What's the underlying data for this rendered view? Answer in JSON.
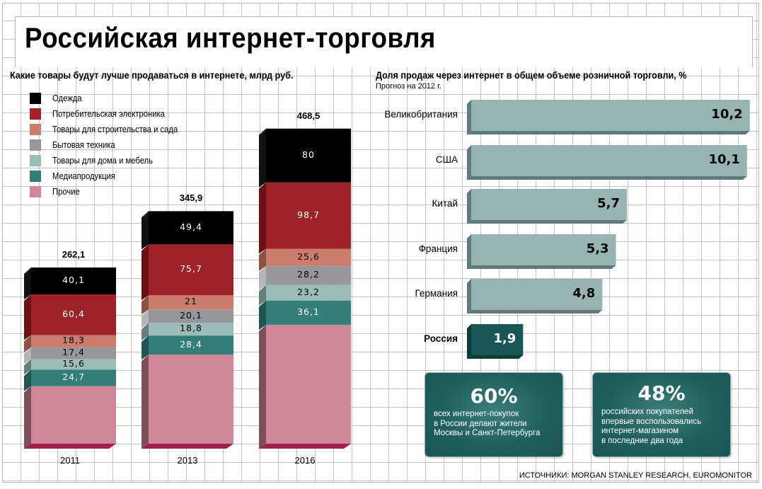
{
  "title": "Российская интернет-торговля",
  "left_subtitle": "Какие товары будут лучше продаваться в интернете, млрд руб.",
  "right_subtitle": "Доля продаж через интернет в общем объеме розничной торговли, %",
  "right_note": "Прогноз на 2012 г.",
  "source": "ИСТОЧНИКИ: MORGAN STANLEY RESEARCH, EUROMONITOR",
  "info_boxes": [
    {
      "big": "60%",
      "lines": [
        "всех интернет-покупок",
        "в России делают жители",
        "Москвы и Санкт-Петербурга"
      ]
    },
    {
      "big": "48%",
      "lines": [
        "российских покупателей",
        "впервые воспользовались",
        "интернет-магазином",
        "в последние два года"
      ]
    }
  ],
  "chart_data": [
    {
      "type": "bar",
      "stacked": true,
      "title": "Какие товары будут лучше продаваться в интернете, млрд руб.",
      "categories": [
        "2011",
        "2013",
        "2016"
      ],
      "totals": [
        "262,1",
        "345,9",
        "468,5"
      ],
      "totals_values": [
        262.1,
        345.9,
        468.5
      ],
      "legend_position": "top-left",
      "series": [
        {
          "name": "Прочие",
          "color": "#d08898",
          "side": "#7e4f5b",
          "values": [
            85.6,
            132.5,
            176.9
          ],
          "labels": [
            "",
            "",
            ""
          ],
          "label_color": "#000000"
        },
        {
          "name": "Медиапродукция",
          "color": "#337e79",
          "side": "#1f5552",
          "values": [
            24.7,
            28.4,
            36.1
          ],
          "labels": [
            "24,7",
            "28,4",
            "36,1"
          ],
          "label_color": "#ffffff"
        },
        {
          "name": "Товары для дома и мебель",
          "color": "#9bbcb8",
          "side": "#647f7c",
          "values": [
            15.6,
            18.8,
            23.2
          ],
          "labels": [
            "15,6",
            "18,8",
            "23,2"
          ],
          "label_color": "#000000"
        },
        {
          "name": "Бытовая техника",
          "color": "#97979b",
          "side": "#b5b5b8",
          "values": [
            17.4,
            20.1,
            28.2
          ],
          "labels": [
            "17,4",
            "20,1",
            "28,2"
          ],
          "label_color": "#000000"
        },
        {
          "name": "Товары для строительства и сада",
          "color": "#cc7c6c",
          "side": "#8a5244",
          "values": [
            18.3,
            21,
            25.6
          ],
          "labels": [
            "18,3",
            "21",
            "25,6"
          ],
          "label_color": "#000000"
        },
        {
          "name": "Потребительская электроника",
          "color": "#9f2228",
          "side": "#6a1116",
          "values": [
            60.4,
            75.7,
            98.7
          ],
          "labels": [
            "60,4",
            "75,7",
            "98,7"
          ],
          "label_color": "#ffffff"
        },
        {
          "name": "Одежда",
          "color": "#000000",
          "side": "#111111",
          "values": [
            40.1,
            49.4,
            80
          ],
          "labels": [
            "40,1",
            "49,4",
            "80"
          ],
          "label_color": "#ffffff"
        }
      ],
      "legend_order": [
        "Одежда",
        "Потребительская электроника",
        "Товары для строительства и сада",
        "Бытовая техника",
        "Товары для дома и мебель",
        "Медиапродукция",
        "Прочие"
      ],
      "base_color": "#a0204a"
    },
    {
      "type": "bar",
      "orientation": "horizontal",
      "title": "Доля продаж через интернет в общем объеме розничной торговли, %",
      "subtitle": "Прогноз на 2012 г.",
      "categories": [
        "Великобритания",
        "США",
        "Китай",
        "Франция",
        "Германия",
        "Россия"
      ],
      "values": [
        10.2,
        10.1,
        5.7,
        5.3,
        4.8,
        1.9
      ],
      "labels": [
        "10,2",
        "10,1",
        "5,7",
        "5,3",
        "4,8",
        "1,9"
      ],
      "highlight": "Россия",
      "colors": {
        "default": "#97b4b2",
        "default_shade": "#5f7a78",
        "highlight": "#1b5656",
        "highlight_shade": "#0f3a3a"
      }
    }
  ]
}
